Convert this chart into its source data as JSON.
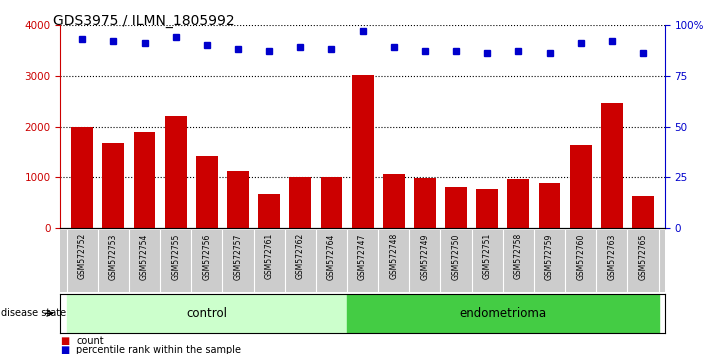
{
  "title": "GDS3975 / ILMN_1805992",
  "samples": [
    "GSM572752",
    "GSM572753",
    "GSM572754",
    "GSM572755",
    "GSM572756",
    "GSM572757",
    "GSM572761",
    "GSM572762",
    "GSM572764",
    "GSM572747",
    "GSM572748",
    "GSM572749",
    "GSM572750",
    "GSM572751",
    "GSM572758",
    "GSM572759",
    "GSM572760",
    "GSM572763",
    "GSM572765"
  ],
  "counts": [
    2000,
    1680,
    1890,
    2200,
    1430,
    1130,
    680,
    1000,
    1000,
    3020,
    1060,
    980,
    820,
    780,
    970,
    890,
    1640,
    2470,
    630
  ],
  "percentiles": [
    93,
    92,
    91,
    94,
    90,
    88,
    87,
    89,
    88,
    97,
    89,
    87,
    87,
    86,
    87,
    86,
    91,
    92,
    86
  ],
  "n_control": 9,
  "n_endometrioma": 10,
  "bar_color": "#cc0000",
  "dot_color": "#0000cc",
  "control_bg": "#ccffcc",
  "endo_bg": "#44cc44",
  "tick_bg": "#cccccc",
  "ylim_left": [
    0,
    4000
  ],
  "ylim_right": [
    0,
    100
  ],
  "yticks_left": [
    0,
    1000,
    2000,
    3000,
    4000
  ],
  "yticks_right": [
    0,
    25,
    50,
    75,
    100
  ],
  "yticklabels_right": [
    "0",
    "25",
    "50",
    "75",
    "100%"
  ]
}
